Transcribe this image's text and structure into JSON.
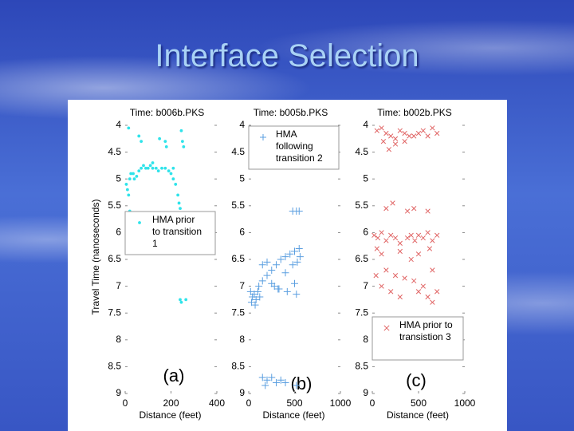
{
  "title": "Interface Selection",
  "chart_data": [
    {
      "type": "scatter",
      "title": "Time: b006b.PKS",
      "xlabel": "Distance (feet)",
      "ylabel": "Travel Time (nanoseconds)",
      "annotation": "(a)",
      "xlim": [
        0,
        400
      ],
      "xticks": [
        0,
        200,
        400
      ],
      "ylim": [
        4,
        9
      ],
      "y_inverted": true,
      "yticks": [
        4,
        4.5,
        5,
        5.5,
        6,
        6.5,
        7,
        7.5,
        8,
        8.5,
        9
      ],
      "legend": "center left",
      "series": [
        {
          "name": "HMA prior to transition 1",
          "color": "#2fe3ea",
          "marker": ".",
          "x": [
            15,
            60,
            70,
            150,
            175,
            180,
            245,
            250,
            255,
            5,
            10,
            15,
            20,
            25,
            35,
            40,
            50,
            60,
            70,
            80,
            90,
            100,
            110,
            120,
            135,
            145,
            160,
            175,
            190,
            200,
            210,
            220,
            230,
            235,
            240,
            20,
            25,
            240,
            245,
            265,
            120,
            210
          ],
          "y": [
            4.05,
            4.2,
            4.3,
            4.25,
            4.3,
            4.4,
            4.1,
            4.3,
            4.4,
            5.1,
            5.2,
            5.3,
            5.0,
            4.9,
            4.9,
            5.0,
            4.95,
            4.85,
            4.8,
            4.75,
            4.8,
            4.8,
            4.75,
            4.8,
            4.8,
            4.85,
            4.8,
            4.8,
            4.85,
            4.9,
            5.0,
            5.1,
            5.3,
            5.45,
            5.55,
            5.6,
            5.7,
            7.25,
            7.3,
            7.25,
            4.7,
            4.8
          ]
        }
      ]
    },
    {
      "type": "scatter",
      "title": "Time: b005b.PKS",
      "xlabel": "Distance (feet)",
      "annotation": "(b)",
      "xlim": [
        0,
        1000
      ],
      "xticks": [
        0,
        500,
        1000
      ],
      "ylim": [
        4,
        9
      ],
      "y_inverted": true,
      "yticks": [
        4,
        4.5,
        5,
        5.5,
        6,
        6.5,
        7,
        7.5,
        8,
        8.5,
        9
      ],
      "legend": "upper left",
      "series": [
        {
          "name": "HMA following transition 2",
          "color": "#5b9fe0",
          "marker": "+",
          "x": [
            20,
            40,
            60,
            80,
            100,
            120,
            30,
            70,
            110,
            150,
            200,
            250,
            300,
            350,
            400,
            450,
            500,
            550,
            560,
            530,
            480,
            400,
            330,
            280,
            200,
            150,
            250,
            420,
            500,
            520,
            320,
            150,
            200,
            250,
            300,
            350,
            400,
            180,
            480,
            520,
            550,
            520
          ],
          "y": [
            7.1,
            7.2,
            7.15,
            7.25,
            7.1,
            7.2,
            7.3,
            7.35,
            7.0,
            6.9,
            6.8,
            6.7,
            6.6,
            6.5,
            6.45,
            6.4,
            6.35,
            6.3,
            6.45,
            6.55,
            6.6,
            6.75,
            7.05,
            7.0,
            6.55,
            6.6,
            6.95,
            7.1,
            6.95,
            7.15,
            7.05,
            8.7,
            8.75,
            8.7,
            8.8,
            8.75,
            8.8,
            8.85,
            5.6,
            5.6,
            5.6,
            8.85
          ]
        }
      ]
    },
    {
      "type": "scatter",
      "title": "Time: b002b.PKS",
      "xlabel": "Distance (feet)",
      "annotation": "(c)",
      "xlim": [
        0,
        1000
      ],
      "xticks": [
        0,
        500,
        1000
      ],
      "ylim": [
        4,
        9
      ],
      "y_inverted": true,
      "yticks": [
        4,
        4.5,
        5,
        5.5,
        6,
        6.5,
        7,
        7.5,
        8,
        8.5,
        9
      ],
      "legend": "lower left",
      "series": [
        {
          "name": "HMA prior to transistion 3",
          "color": "#e06464",
          "marker": "x",
          "x": [
            50,
            100,
            150,
            200,
            300,
            350,
            400,
            500,
            550,
            650,
            120,
            180,
            250,
            350,
            450,
            600,
            700,
            150,
            220,
            380,
            450,
            600,
            20,
            60,
            100,
            150,
            200,
            250,
            300,
            380,
            420,
            460,
            500,
            550,
            600,
            650,
            700,
            50,
            100,
            300,
            420,
            500,
            620,
            150,
            250,
            450,
            550,
            650,
            40,
            100,
            200,
            300,
            500,
            600,
            650,
            700,
            350,
            250
          ],
          "y": [
            4.1,
            4.05,
            4.15,
            4.2,
            4.1,
            4.15,
            4.2,
            4.15,
            4.1,
            4.05,
            4.3,
            4.45,
            4.25,
            4.3,
            4.2,
            4.2,
            4.15,
            5.55,
            5.45,
            5.6,
            5.55,
            5.6,
            6.05,
            6.1,
            6.0,
            6.15,
            6.05,
            6.1,
            6.2,
            6.1,
            6.05,
            6.15,
            6.05,
            6.1,
            6.0,
            6.15,
            6.05,
            6.3,
            6.4,
            6.35,
            6.5,
            6.4,
            6.3,
            6.7,
            6.8,
            6.9,
            7.0,
            6.7,
            6.8,
            7.0,
            7.1,
            7.2,
            7.1,
            7.2,
            7.3,
            7.1,
            6.85,
            4.35
          ]
        }
      ]
    }
  ]
}
